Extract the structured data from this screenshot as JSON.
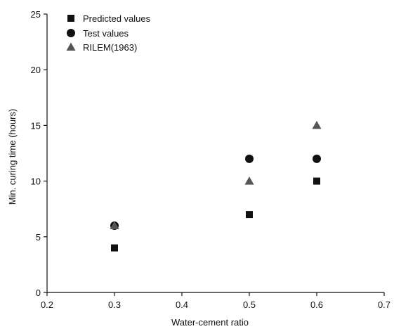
{
  "chart_data": {
    "type": "scatter",
    "title": "",
    "xlabel": "Water-cement ratio",
    "ylabel": "Min. curing time (hours)",
    "xlim": [
      0.2,
      0.7
    ],
    "ylim": [
      0,
      25
    ],
    "xticks": [
      "0.2",
      "0.3",
      "0.4",
      "0.5",
      "0.6",
      "0.7"
    ],
    "yticks": [
      "0",
      "5",
      "10",
      "15",
      "20",
      "25"
    ],
    "grid": false,
    "legend": "top-left",
    "series": [
      {
        "name": "Predicted values",
        "marker": "square",
        "color": "#111111",
        "points": [
          {
            "x": 0.3,
            "y": 4
          },
          {
            "x": 0.5,
            "y": 7
          },
          {
            "x": 0.6,
            "y": 10
          }
        ]
      },
      {
        "name": "Test values",
        "marker": "circle",
        "color": "#111111",
        "points": [
          {
            "x": 0.3,
            "y": 6
          },
          {
            "x": 0.5,
            "y": 12
          },
          {
            "x": 0.6,
            "y": 12
          }
        ]
      },
      {
        "name": "RILEM(1963)",
        "marker": "triangle",
        "color": "#555555",
        "points": [
          {
            "x": 0.3,
            "y": 6
          },
          {
            "x": 0.5,
            "y": 10
          },
          {
            "x": 0.6,
            "y": 15
          }
        ]
      }
    ]
  }
}
